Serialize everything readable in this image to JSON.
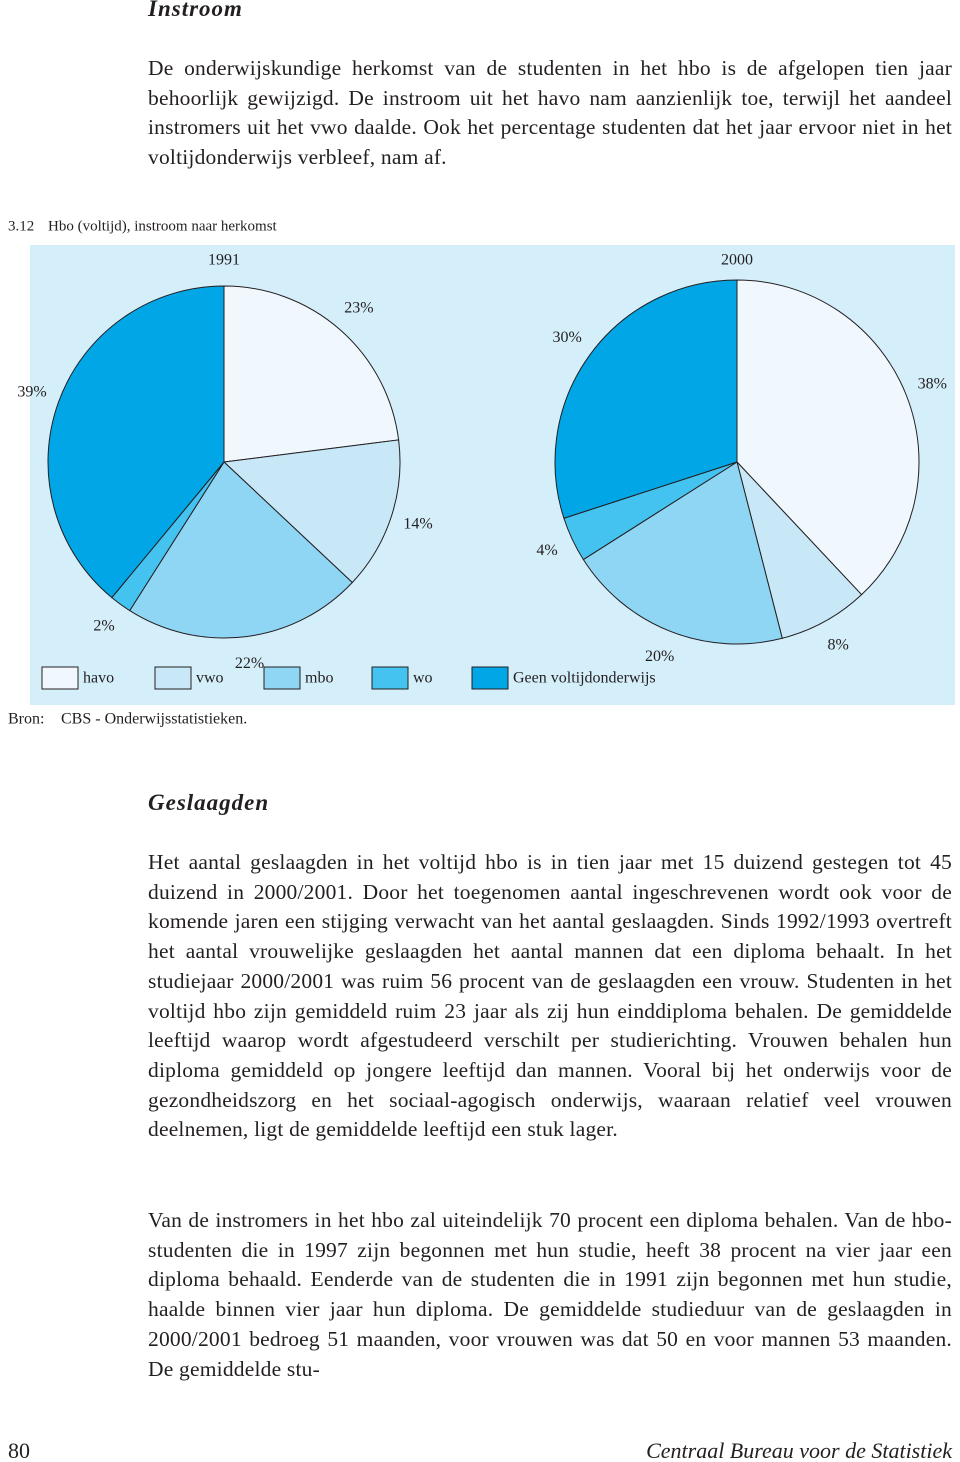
{
  "section1": {
    "heading": "Instroom",
    "paragraph": "De onderwijskundige herkomst van de studenten in het hbo is de afgelopen tien jaar behoorlijk gewijzigd. De instroom uit het havo nam aanzienlijk toe, terwijl het aandeel instromers uit het vwo daalde. Ook het percentage studenten dat het jaar ervoor niet in het voltijdonderwijs verbleef, nam af."
  },
  "figure": {
    "number": "3.12",
    "title": "Hbo (voltijd), instroom naar herkomst",
    "source_label": "Bron:",
    "source": "CBS - Onderwijsstatistieken."
  },
  "chart_data": [
    {
      "type": "pie",
      "title": "1991",
      "categories": [
        "havo",
        "vwo",
        "mbo",
        "wo",
        "Geen voltijdonderwijs"
      ],
      "values": [
        23,
        14,
        22,
        2,
        39
      ],
      "value_labels": [
        "23%",
        "14%",
        "22%",
        "2%",
        "39%"
      ],
      "colors": [
        "#f0f8fe",
        "#c8e8f8",
        "#8fd6f5",
        "#45c3f0",
        "#00a6e6"
      ]
    },
    {
      "type": "pie",
      "title": "2000",
      "categories": [
        "havo",
        "vwo",
        "mbo",
        "wo",
        "Geen voltijdonderwijs"
      ],
      "values": [
        38,
        8,
        20,
        4,
        30
      ],
      "value_labels": [
        "38%",
        "8%",
        "20%",
        "4%",
        "30%"
      ],
      "colors": [
        "#f0f8fe",
        "#c8e8f8",
        "#8fd6f5",
        "#45c3f0",
        "#00a6e6"
      ]
    }
  ],
  "section2": {
    "heading": "Geslaagden",
    "paragraphs": [
      "Het aantal geslaagden in het voltijd hbo is in tien jaar met 15 duizend gestegen tot 45 duizend in 2000/2001. Door het toegenomen aantal ingeschrevenen wordt ook voor de komende jaren een stijging verwacht van het aantal geslaagden. Sinds 1992/1993 overtreft het aantal vrouwelijke geslaagden het aantal mannen dat een diploma behaalt. In het studiejaar 2000/2001 was ruim 56 procent van de geslaagden een vrouw. Studenten in het voltijd hbo zijn gemiddeld ruim 23 jaar als zij hun einddiploma behalen. De gemiddelde leeftijd waarop wordt afgestudeerd verschilt per studierichting. Vrouwen behalen hun diploma gemiddeld op jongere leeftijd dan mannen. Vooral bij het onderwijs voor de gezondheidszorg en het sociaal-agogisch onderwijs, waaraan relatief veel vrouwen deelnemen, ligt de gemiddelde leeftijd een stuk lager.",
      "Van de instromers in het hbo zal uiteindelijk 70 procent een diploma behalen. Van de hbo-studenten die in 1997 zijn begonnen met hun studie, heeft 38 procent na vier jaar een diploma behaald. Eenderde van de studenten die in 1991 zijn begonnen met hun studie, haalde binnen vier jaar hun diploma. De gemiddelde studieduur van de geslaagden in 2000/2001 bedroeg 51 maanden, voor vrouwen was dat 50 en voor mannen 53 maanden. De gemiddelde stu-"
    ]
  },
  "footer": {
    "page_number": "80",
    "publisher": "Centraal Bureau voor de Statistiek"
  }
}
